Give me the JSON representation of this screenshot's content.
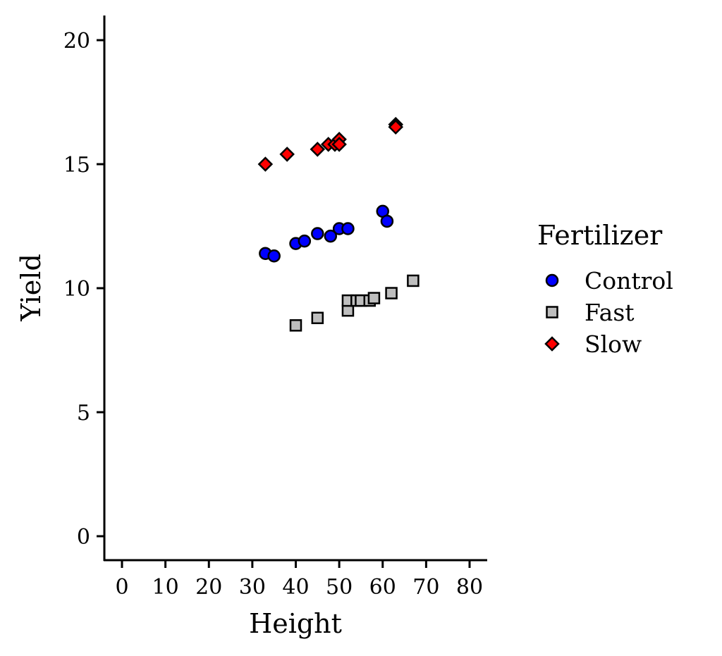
{
  "chart_data": {
    "type": "scatter",
    "xlabel": "Height",
    "ylabel": "Yield",
    "xlim": [
      -4,
      84
    ],
    "ylim": [
      -1,
      21
    ],
    "xticks": [
      0,
      10,
      20,
      30,
      40,
      50,
      60,
      70,
      80
    ],
    "yticks": [
      0,
      5,
      10,
      15,
      20
    ],
    "grid": false,
    "legend": {
      "title": "Fertilizer",
      "placement": "right"
    },
    "series": [
      {
        "name": "Control",
        "marker": "circle",
        "color": "#0000ff",
        "x": [
          33,
          35,
          40,
          42,
          45,
          48,
          50,
          52,
          60,
          61
        ],
        "y": [
          11.4,
          11.3,
          11.8,
          11.9,
          12.2,
          12.1,
          12.4,
          12.4,
          13.1,
          12.7
        ]
      },
      {
        "name": "Fast",
        "marker": "square",
        "color": "#bebebe",
        "x": [
          40,
          45,
          52,
          52,
          54,
          55,
          57,
          58,
          62,
          67
        ],
        "y": [
          8.5,
          8.8,
          9.1,
          9.5,
          9.5,
          9.5,
          9.5,
          9.6,
          9.8,
          10.3
        ]
      },
      {
        "name": "Slow",
        "marker": "diamond",
        "color": "#ff0000",
        "x": [
          33,
          38,
          45,
          47.5,
          49,
          50,
          50,
          63,
          63
        ],
        "y": [
          15.0,
          15.4,
          15.6,
          15.8,
          15.8,
          16.0,
          15.8,
          16.6,
          16.5
        ]
      }
    ]
  }
}
